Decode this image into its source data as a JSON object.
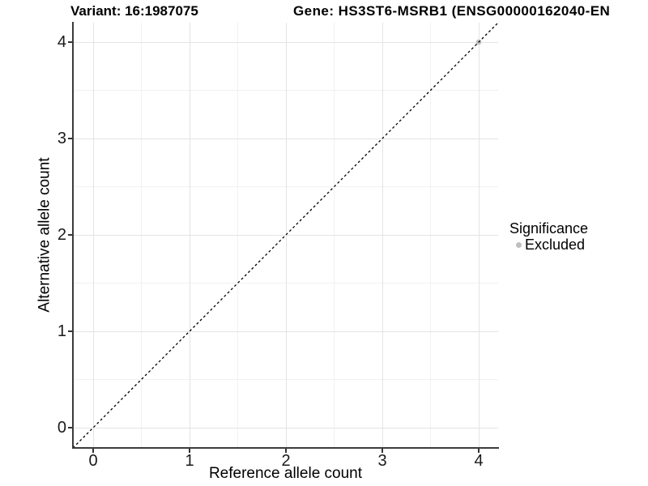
{
  "chart_data": {
    "type": "scatter",
    "title_left": "Variant: 16:1987075",
    "title_right": "Gene: HS3ST6-MSRB1 (ENSG00000162040-EN",
    "xlabel": "Reference allele count",
    "ylabel": "Alternative allele count",
    "x_ticks": [
      0,
      1,
      2,
      3,
      4
    ],
    "y_ticks": [
      0,
      1,
      2,
      3,
      4
    ],
    "xlim": [
      -0.21,
      4.21
    ],
    "ylim": [
      -0.21,
      4.21
    ],
    "grid": {
      "major": true,
      "minor": true
    },
    "points": [
      {
        "x": 4,
        "y": 4,
        "series": "Excluded"
      }
    ],
    "series": [
      {
        "name": "Excluded",
        "color": "#c2c2c2"
      }
    ],
    "reference_line": {
      "slope": 1,
      "intercept": 0,
      "style": "dashed",
      "color": "#000000"
    },
    "legend": {
      "title": "Significance",
      "position": "right",
      "items": [
        {
          "label": "Excluded",
          "color": "#bfbfbf"
        }
      ]
    },
    "colors": {
      "grid_major": "#e4e4e4",
      "grid_minor": "#f1f1f1",
      "axis_line": "#3c3c3c",
      "point": "#c2c2c2"
    }
  }
}
